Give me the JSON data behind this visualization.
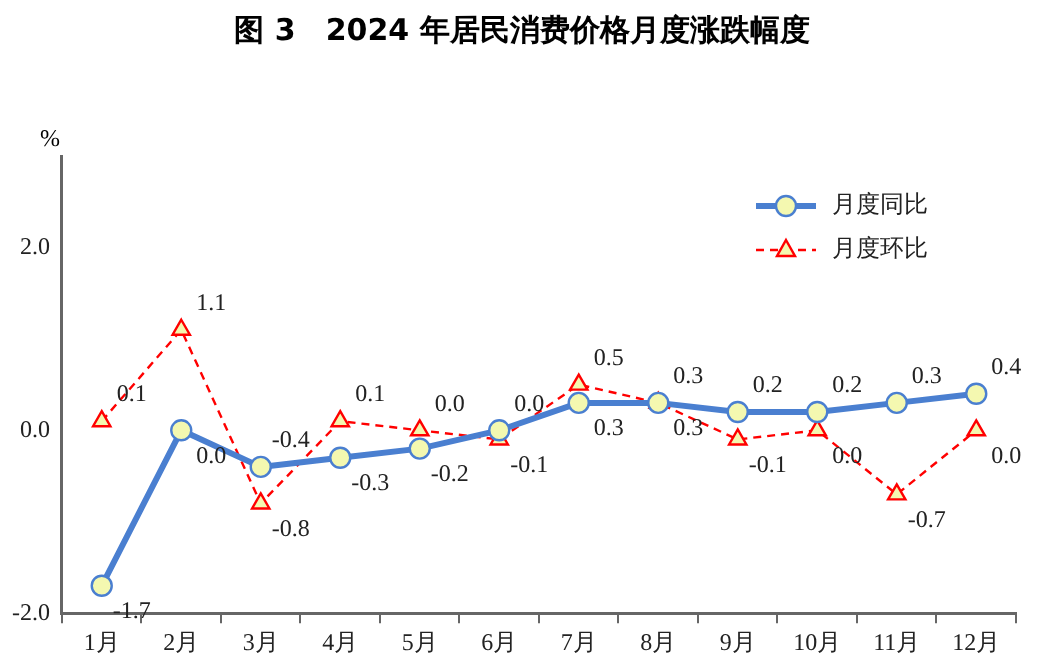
{
  "chart_data": {
    "type": "line",
    "title": "图 3　2024 年居民消费价格月度涨跌幅度",
    "ylabel": "%",
    "categories": [
      "1月",
      "2月",
      "3月",
      "4月",
      "5月",
      "6月",
      "7月",
      "8月",
      "9月",
      "10月",
      "11月",
      "12月"
    ],
    "series": [
      {
        "name": "月度同比",
        "color": "#4a7fd0",
        "marker": "circle",
        "line_style": "solid",
        "values": [
          -1.7,
          0.0,
          -0.4,
          -0.3,
          -0.2,
          0.0,
          0.3,
          0.3,
          0.2,
          0.2,
          0.3,
          0.4
        ],
        "value_labels": [
          "-1.7",
          "0.0",
          "-0.4",
          "-0.3",
          "-0.2",
          "0.0",
          "0.3",
          "0.3",
          "0.2",
          "0.2",
          "0.3",
          "0.4"
        ]
      },
      {
        "name": "月度环比",
        "color": "#ff0000",
        "marker": "triangle",
        "line_style": "dashed",
        "values": [
          0.1,
          1.1,
          -0.8,
          0.1,
          0.0,
          -0.1,
          0.5,
          0.3,
          -0.1,
          0.0,
          -0.7,
          0.0
        ],
        "value_labels": [
          "0.1",
          "1.1",
          "-0.8",
          "0.1",
          "0.0",
          "-0.1",
          "0.5",
          "0.3",
          "-0.1",
          "0.0",
          "-0.7",
          "0.0"
        ]
      }
    ],
    "ylim": [
      -2.0,
      3.0
    ],
    "yticks": [
      {
        "value": -2.0,
        "label": "-2.0"
      },
      {
        "value": 0,
        "label": "0.0"
      },
      {
        "value": 2.0,
        "label": "2.0"
      }
    ],
    "grid": false,
    "legend": "top right"
  }
}
